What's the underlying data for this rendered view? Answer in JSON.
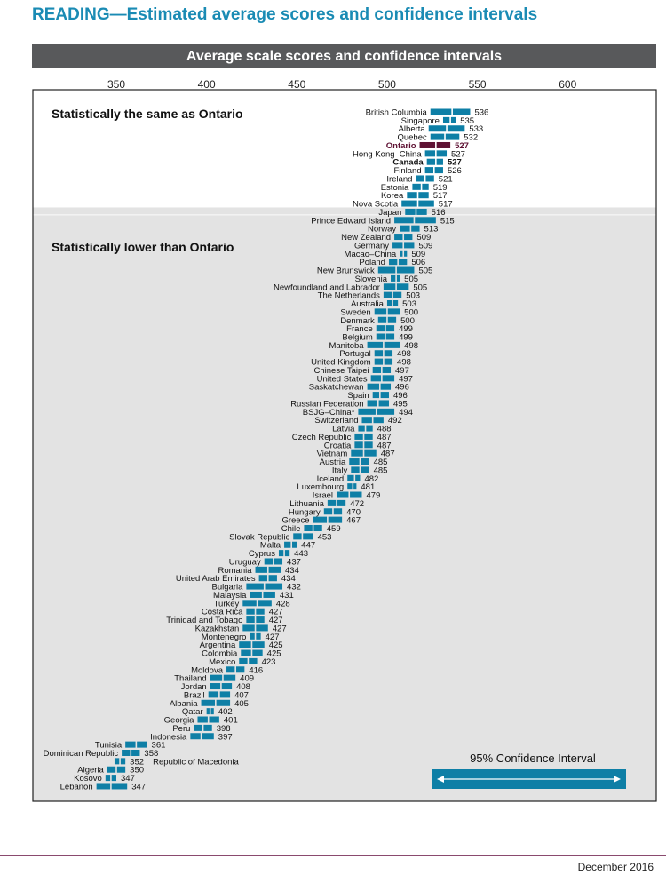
{
  "page": {
    "title": "READING—Estimated average scores and confidence intervals",
    "header": "Average scale scores and confidence intervals",
    "footer_date": "December 2016"
  },
  "colors": {
    "bar": "#0e7fa6",
    "highlight": "#5e1133",
    "band_gray": "#e3e3e3",
    "title": "#1a8bb4",
    "header_bg": "#58595b"
  },
  "chart_data": {
    "type": "dot-interval",
    "title": "Average scale scores and confidence intervals",
    "x_ticks": [
      350,
      400,
      450,
      500,
      550,
      600
    ],
    "xlim": [
      305,
      655
    ],
    "groups": [
      {
        "label": "Statistically the same as Ontario",
        "first_row": 0,
        "last_row": 12
      },
      {
        "label": "Statistically lower than Ontario",
        "first_row": 13,
        "last_row": 82
      }
    ],
    "legend": {
      "label": "95% Confidence Interval"
    },
    "rows": [
      {
        "name": "British Columbia",
        "score": 536,
        "lo": 524,
        "hi": 546
      },
      {
        "name": "Singapore",
        "score": 535,
        "lo": 531,
        "hi": 538
      },
      {
        "name": "Alberta",
        "score": 533,
        "lo": 523,
        "hi": 543
      },
      {
        "name": "Quebec",
        "score": 532,
        "lo": 524,
        "hi": 540
      },
      {
        "name": "Ontario",
        "score": 527,
        "lo": 518,
        "hi": 535,
        "highlight": true
      },
      {
        "name": "Hong Kong–China",
        "score": 527,
        "lo": 521,
        "hi": 533
      },
      {
        "name": "Canada",
        "score": 527,
        "lo": 522,
        "hi": 531,
        "bold": true
      },
      {
        "name": "Finland",
        "score": 526,
        "lo": 521,
        "hi": 531
      },
      {
        "name": "Ireland",
        "score": 521,
        "lo": 516,
        "hi": 526
      },
      {
        "name": "Estonia",
        "score": 519,
        "lo": 514,
        "hi": 523
      },
      {
        "name": "Korea",
        "score": 517,
        "lo": 511,
        "hi": 523
      },
      {
        "name": "Nova Scotia",
        "score": 517,
        "lo": 508,
        "hi": 526
      },
      {
        "name": "Japan",
        "score": 516,
        "lo": 510,
        "hi": 522
      },
      {
        "name": "Prince Edward Island",
        "score": 515,
        "lo": 504,
        "hi": 527
      },
      {
        "name": "Norway",
        "score": 513,
        "lo": 507,
        "hi": 518
      },
      {
        "name": "New Zealand",
        "score": 509,
        "lo": 504,
        "hi": 514
      },
      {
        "name": "Germany",
        "score": 509,
        "lo": 503,
        "hi": 515
      },
      {
        "name": "Macao–China",
        "score": 509,
        "lo": 507,
        "hi": 511
      },
      {
        "name": "Poland",
        "score": 506,
        "lo": 501,
        "hi": 511
      },
      {
        "name": "New Brunswick",
        "score": 505,
        "lo": 495,
        "hi": 515
      },
      {
        "name": "Slovenia",
        "score": 505,
        "lo": 502,
        "hi": 507
      },
      {
        "name": "Newfoundland and Labrador",
        "score": 505,
        "lo": 498,
        "hi": 512
      },
      {
        "name": "The Netherlands",
        "score": 503,
        "lo": 498,
        "hi": 508
      },
      {
        "name": "Australia",
        "score": 503,
        "lo": 500,
        "hi": 506
      },
      {
        "name": "Sweden",
        "score": 500,
        "lo": 493,
        "hi": 507
      },
      {
        "name": "Denmark",
        "score": 500,
        "lo": 495,
        "hi": 505
      },
      {
        "name": "France",
        "score": 499,
        "lo": 494,
        "hi": 504
      },
      {
        "name": "Belgium",
        "score": 499,
        "lo": 494,
        "hi": 504
      },
      {
        "name": "Manitoba",
        "score": 498,
        "lo": 489,
        "hi": 507
      },
      {
        "name": "Portugal",
        "score": 498,
        "lo": 493,
        "hi": 503
      },
      {
        "name": "United Kingdom",
        "score": 498,
        "lo": 493,
        "hi": 503
      },
      {
        "name": "Chinese Taipei",
        "score": 497,
        "lo": 492,
        "hi": 502
      },
      {
        "name": "United States",
        "score": 497,
        "lo": 491,
        "hi": 504
      },
      {
        "name": "Saskatchewan",
        "score": 496,
        "lo": 489,
        "hi": 502
      },
      {
        "name": "Spain",
        "score": 496,
        "lo": 492,
        "hi": 501
      },
      {
        "name": "Russian Federation",
        "score": 495,
        "lo": 489,
        "hi": 501
      },
      {
        "name": "BSJG–China*",
        "score": 494,
        "lo": 484,
        "hi": 504
      },
      {
        "name": "Switzerland",
        "score": 492,
        "lo": 486,
        "hi": 498
      },
      {
        "name": "Latvia",
        "score": 488,
        "lo": 484,
        "hi": 492
      },
      {
        "name": "Czech Republic",
        "score": 487,
        "lo": 482,
        "hi": 492
      },
      {
        "name": "Croatia",
        "score": 487,
        "lo": 482,
        "hi": 492
      },
      {
        "name": "Vietnam",
        "score": 487,
        "lo": 480,
        "hi": 494
      },
      {
        "name": "Austria",
        "score": 485,
        "lo": 479,
        "hi": 490
      },
      {
        "name": "Italy",
        "score": 485,
        "lo": 480,
        "hi": 490
      },
      {
        "name": "Iceland",
        "score": 482,
        "lo": 478,
        "hi": 485
      },
      {
        "name": "Luxembourg",
        "score": 481,
        "lo": 478,
        "hi": 483
      },
      {
        "name": "Israel",
        "score": 479,
        "lo": 472,
        "hi": 486
      },
      {
        "name": "Lithuania",
        "score": 472,
        "lo": 467,
        "hi": 477
      },
      {
        "name": "Hungary",
        "score": 470,
        "lo": 465,
        "hi": 475
      },
      {
        "name": "Greece",
        "score": 467,
        "lo": 459,
        "hi": 475
      },
      {
        "name": "Chile",
        "score": 459,
        "lo": 454,
        "hi": 464
      },
      {
        "name": "Slovak Republic",
        "score": 453,
        "lo": 448,
        "hi": 459
      },
      {
        "name": "Malta",
        "score": 447,
        "lo": 443,
        "hi": 450
      },
      {
        "name": "Cyprus",
        "score": 443,
        "lo": 440,
        "hi": 446
      },
      {
        "name": "Uruguay",
        "score": 437,
        "lo": 432,
        "hi": 442
      },
      {
        "name": "Romania",
        "score": 434,
        "lo": 427,
        "hi": 441
      },
      {
        "name": "United Arab Emirates",
        "score": 434,
        "lo": 429,
        "hi": 439
      },
      {
        "name": "Bulgaria",
        "score": 432,
        "lo": 422,
        "hi": 442
      },
      {
        "name": "Malaysia",
        "score": 431,
        "lo": 424,
        "hi": 438
      },
      {
        "name": "Turkey",
        "score": 428,
        "lo": 420,
        "hi": 436
      },
      {
        "name": "Costa Rica",
        "score": 427,
        "lo": 422,
        "hi": 432
      },
      {
        "name": "Trinidad and Tobago",
        "score": 427,
        "lo": 422,
        "hi": 432
      },
      {
        "name": "Kazakhstan",
        "score": 427,
        "lo": 420,
        "hi": 434
      },
      {
        "name": "Montenegro",
        "score": 427,
        "lo": 424,
        "hi": 430
      },
      {
        "name": "Argentina",
        "score": 425,
        "lo": 418,
        "hi": 432
      },
      {
        "name": "Colombia",
        "score": 425,
        "lo": 419,
        "hi": 431
      },
      {
        "name": "Mexico",
        "score": 423,
        "lo": 418,
        "hi": 428
      },
      {
        "name": "Moldova",
        "score": 416,
        "lo": 411,
        "hi": 421
      },
      {
        "name": "Thailand",
        "score": 409,
        "lo": 402,
        "hi": 416
      },
      {
        "name": "Jordan",
        "score": 408,
        "lo": 402,
        "hi": 414
      },
      {
        "name": "Brazil",
        "score": 407,
        "lo": 401,
        "hi": 413
      },
      {
        "name": "Albania",
        "score": 405,
        "lo": 397,
        "hi": 413
      },
      {
        "name": "Qatar",
        "score": 402,
        "lo": 400,
        "hi": 404
      },
      {
        "name": "Georgia",
        "score": 401,
        "lo": 395,
        "hi": 407
      },
      {
        "name": "Peru",
        "score": 398,
        "lo": 393,
        "hi": 403
      },
      {
        "name": "Indonesia",
        "score": 397,
        "lo": 391,
        "hi": 404
      },
      {
        "name": "Tunisia",
        "score": 361,
        "lo": 355,
        "hi": 367
      },
      {
        "name": "Dominican Republic",
        "score": 358,
        "lo": 353,
        "hi": 363
      },
      {
        "name": "Republic of Macedonia",
        "score": 352,
        "lo": 349,
        "hi": 355,
        "label_right": true
      },
      {
        "name": "Algeria",
        "score": 350,
        "lo": 345,
        "hi": 355
      },
      {
        "name": "Kosovo",
        "score": 347,
        "lo": 344,
        "hi": 350
      },
      {
        "name": "Lebanon",
        "score": 347,
        "lo": 339,
        "hi": 356
      }
    ]
  }
}
